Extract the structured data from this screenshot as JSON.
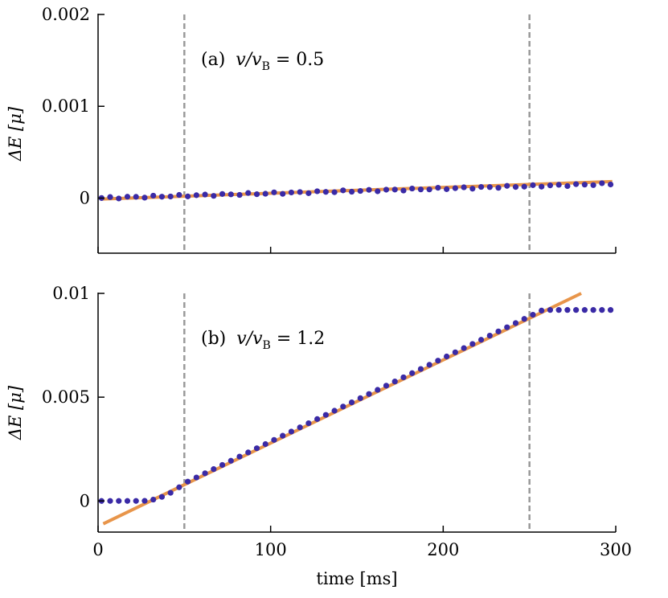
{
  "colors": {
    "points": "#3a2aa6",
    "fit": "#e8954a",
    "guide": "#999999",
    "axis": "#000000"
  },
  "chart_data": [
    {
      "type": "scatter",
      "panel": "a",
      "annotation": {
        "prefix": "(a) ",
        "math": "v/v",
        "sub": "B",
        "rest": " = 0.5"
      },
      "xlabel": "",
      "ylabel": "ΔE [μ]",
      "xlim": [
        0,
        300
      ],
      "ylim": [
        -0.0006,
        0.002
      ],
      "yticks": [
        0,
        0.001,
        0.002
      ],
      "ytick_labels": [
        "0",
        "0.001",
        "0.002"
      ],
      "xticks": [
        0,
        100,
        200,
        300
      ],
      "xtick_labels": [
        "",
        "",
        "",
        ""
      ],
      "guides_x": [
        50,
        250
      ],
      "points_x_range": [
        2,
        297
      ],
      "points_count": 60,
      "points_y_model": {
        "kind": "linear",
        "y_at_x0": 0.0,
        "slope_per_ms": 5.2e-07
      },
      "fit": {
        "x": [
          2,
          298
        ],
        "y": [
          -1e-05,
          0.00018
        ]
      },
      "grid": false
    },
    {
      "type": "scatter",
      "panel": "b",
      "annotation": {
        "prefix": "(b) ",
        "math": "v/v",
        "sub": "B",
        "rest": " = 1.2"
      },
      "xlabel": "time [ms]",
      "ylabel": "ΔE [μ]",
      "xlim": [
        0,
        300
      ],
      "ylim": [
        -0.0015,
        0.01
      ],
      "yticks": [
        0,
        0.005,
        0.01
      ],
      "ytick_labels": [
        "0",
        "0.005",
        "0.01"
      ],
      "xticks": [
        0,
        100,
        200,
        300
      ],
      "xtick_labels": [
        "0",
        "100",
        "200",
        "300"
      ],
      "guides_x": [
        50,
        250
      ],
      "points_x_range": [
        2,
        297
      ],
      "points_count": 60,
      "points_y_model": {
        "kind": "piecewise",
        "flat_until_ms": 25,
        "knee_ms": 50,
        "y_at_knee": 0.00085,
        "linear_slope_per_ms": 4.02e-05,
        "plateau_from_ms": 260,
        "plateau_y": 0.0092
      },
      "fit": {
        "x": [
          3,
          280
        ],
        "y": [
          -0.0011,
          0.01
        ]
      },
      "grid": false
    }
  ]
}
